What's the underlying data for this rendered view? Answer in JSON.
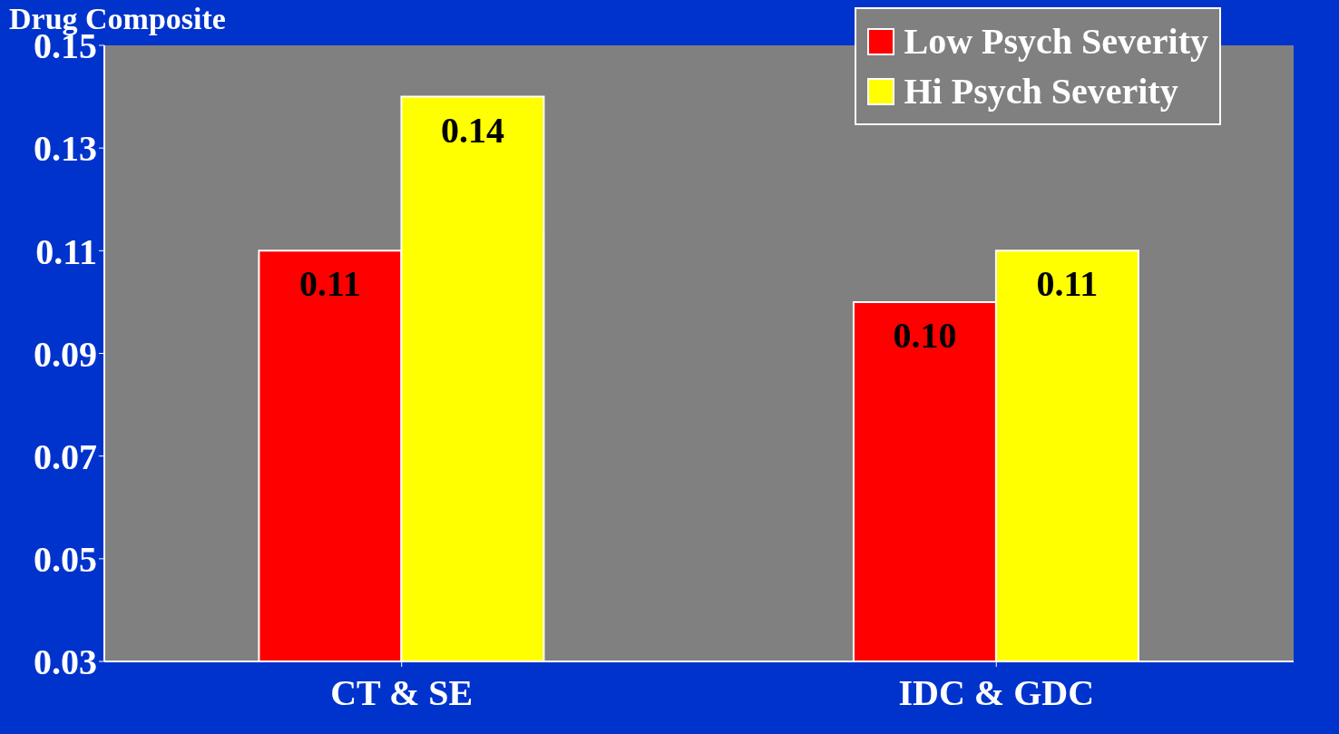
{
  "chart_data": {
    "type": "bar",
    "ylabel": "Drug Composite",
    "categories": [
      "CT & SE",
      "IDC & GDC"
    ],
    "series": [
      {
        "name": "Low Psych Severity",
        "color": "#ff0000",
        "values": [
          0.11,
          0.1
        ],
        "value_labels": [
          "0.11",
          "0.10"
        ]
      },
      {
        "name": "Hi Psych Severity",
        "color": "#ffff00",
        "values": [
          0.14,
          0.11
        ],
        "value_labels": [
          "0.14",
          "0.11"
        ]
      }
    ],
    "ylim": [
      0.03,
      0.15
    ],
    "yticks": [
      0.03,
      0.05,
      0.07,
      0.09,
      0.11,
      0.13,
      0.15
    ],
    "grid": false,
    "legend": "top right"
  }
}
